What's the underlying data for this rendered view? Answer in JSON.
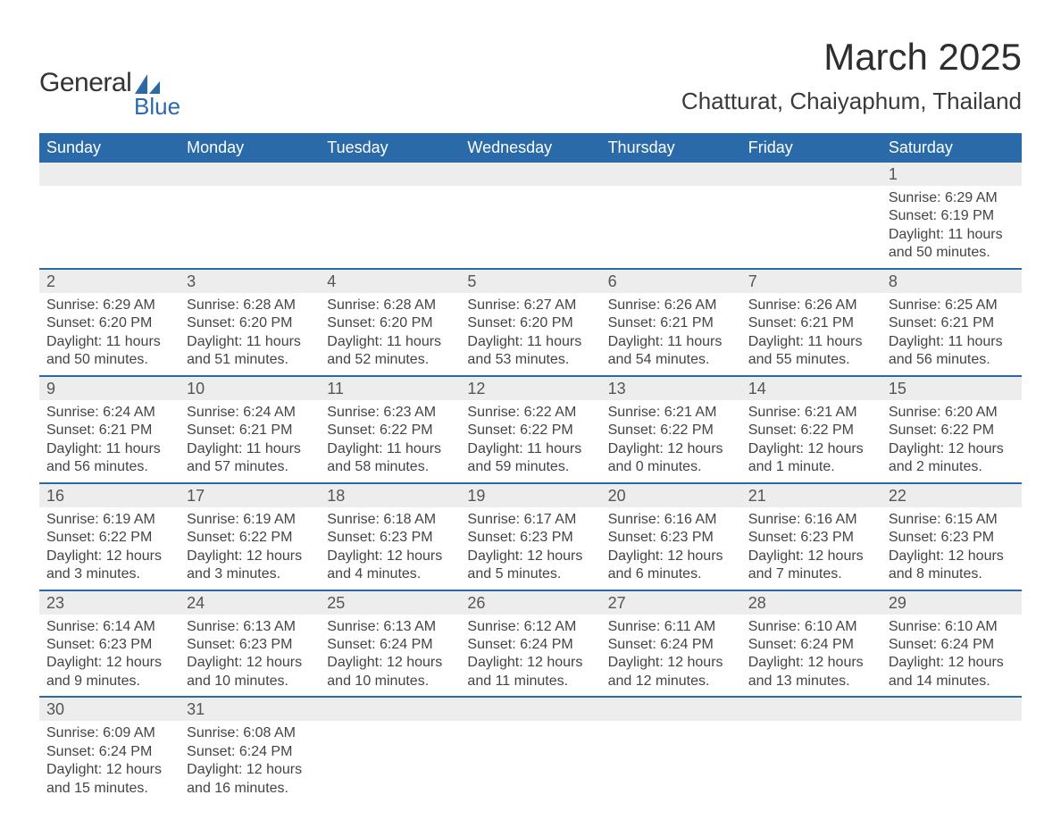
{
  "brand": {
    "word1": "General",
    "word2": "Blue"
  },
  "header": {
    "month_title": "March 2025",
    "location": "Chatturat, Chaiyaphum, Thailand"
  },
  "colors": {
    "header_bg": "#2b6aa8",
    "header_text": "#ffffff",
    "daynum_bg": "#ededed",
    "row_border": "#2b6aa8",
    "body_text": "#444444",
    "title_text": "#2e2e2e"
  },
  "daynames": [
    "Sunday",
    "Monday",
    "Tuesday",
    "Wednesday",
    "Thursday",
    "Friday",
    "Saturday"
  ],
  "weeks": [
    [
      null,
      null,
      null,
      null,
      null,
      null,
      {
        "n": "1",
        "sr": "6:29 AM",
        "ss": "6:19 PM",
        "dl": "11 hours and 50 minutes."
      }
    ],
    [
      {
        "n": "2",
        "sr": "6:29 AM",
        "ss": "6:20 PM",
        "dl": "11 hours and 50 minutes."
      },
      {
        "n": "3",
        "sr": "6:28 AM",
        "ss": "6:20 PM",
        "dl": "11 hours and 51 minutes."
      },
      {
        "n": "4",
        "sr": "6:28 AM",
        "ss": "6:20 PM",
        "dl": "11 hours and 52 minutes."
      },
      {
        "n": "5",
        "sr": "6:27 AM",
        "ss": "6:20 PM",
        "dl": "11 hours and 53 minutes."
      },
      {
        "n": "6",
        "sr": "6:26 AM",
        "ss": "6:21 PM",
        "dl": "11 hours and 54 minutes."
      },
      {
        "n": "7",
        "sr": "6:26 AM",
        "ss": "6:21 PM",
        "dl": "11 hours and 55 minutes."
      },
      {
        "n": "8",
        "sr": "6:25 AM",
        "ss": "6:21 PM",
        "dl": "11 hours and 56 minutes."
      }
    ],
    [
      {
        "n": "9",
        "sr": "6:24 AM",
        "ss": "6:21 PM",
        "dl": "11 hours and 56 minutes."
      },
      {
        "n": "10",
        "sr": "6:24 AM",
        "ss": "6:21 PM",
        "dl": "11 hours and 57 minutes."
      },
      {
        "n": "11",
        "sr": "6:23 AM",
        "ss": "6:22 PM",
        "dl": "11 hours and 58 minutes."
      },
      {
        "n": "12",
        "sr": "6:22 AM",
        "ss": "6:22 PM",
        "dl": "11 hours and 59 minutes."
      },
      {
        "n": "13",
        "sr": "6:21 AM",
        "ss": "6:22 PM",
        "dl": "12 hours and 0 minutes."
      },
      {
        "n": "14",
        "sr": "6:21 AM",
        "ss": "6:22 PM",
        "dl": "12 hours and 1 minute."
      },
      {
        "n": "15",
        "sr": "6:20 AM",
        "ss": "6:22 PM",
        "dl": "12 hours and 2 minutes."
      }
    ],
    [
      {
        "n": "16",
        "sr": "6:19 AM",
        "ss": "6:22 PM",
        "dl": "12 hours and 3 minutes."
      },
      {
        "n": "17",
        "sr": "6:19 AM",
        "ss": "6:22 PM",
        "dl": "12 hours and 3 minutes."
      },
      {
        "n": "18",
        "sr": "6:18 AM",
        "ss": "6:23 PM",
        "dl": "12 hours and 4 minutes."
      },
      {
        "n": "19",
        "sr": "6:17 AM",
        "ss": "6:23 PM",
        "dl": "12 hours and 5 minutes."
      },
      {
        "n": "20",
        "sr": "6:16 AM",
        "ss": "6:23 PM",
        "dl": "12 hours and 6 minutes."
      },
      {
        "n": "21",
        "sr": "6:16 AM",
        "ss": "6:23 PM",
        "dl": "12 hours and 7 minutes."
      },
      {
        "n": "22",
        "sr": "6:15 AM",
        "ss": "6:23 PM",
        "dl": "12 hours and 8 minutes."
      }
    ],
    [
      {
        "n": "23",
        "sr": "6:14 AM",
        "ss": "6:23 PM",
        "dl": "12 hours and 9 minutes."
      },
      {
        "n": "24",
        "sr": "6:13 AM",
        "ss": "6:23 PM",
        "dl": "12 hours and 10 minutes."
      },
      {
        "n": "25",
        "sr": "6:13 AM",
        "ss": "6:24 PM",
        "dl": "12 hours and 10 minutes."
      },
      {
        "n": "26",
        "sr": "6:12 AM",
        "ss": "6:24 PM",
        "dl": "12 hours and 11 minutes."
      },
      {
        "n": "27",
        "sr": "6:11 AM",
        "ss": "6:24 PM",
        "dl": "12 hours and 12 minutes."
      },
      {
        "n": "28",
        "sr": "6:10 AM",
        "ss": "6:24 PM",
        "dl": "12 hours and 13 minutes."
      },
      {
        "n": "29",
        "sr": "6:10 AM",
        "ss": "6:24 PM",
        "dl": "12 hours and 14 minutes."
      }
    ],
    [
      {
        "n": "30",
        "sr": "6:09 AM",
        "ss": "6:24 PM",
        "dl": "12 hours and 15 minutes."
      },
      {
        "n": "31",
        "sr": "6:08 AM",
        "ss": "6:24 PM",
        "dl": "12 hours and 16 minutes."
      },
      null,
      null,
      null,
      null,
      null
    ]
  ],
  "labels": {
    "sunrise": "Sunrise: ",
    "sunset": "Sunset: ",
    "daylight": "Daylight: "
  }
}
